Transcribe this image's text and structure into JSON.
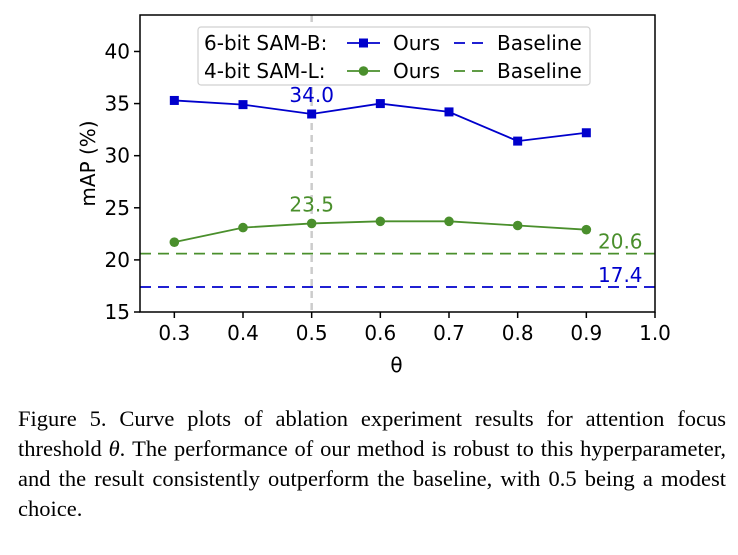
{
  "colors": {
    "blue": "#0000cc",
    "green": "#4a8f2c",
    "guide": "#cccccc",
    "axis": "#000000"
  },
  "chart_data": {
    "type": "line",
    "xlabel": "θ",
    "ylabel": "mAP (%)",
    "xlim": [
      0.25,
      1.0
    ],
    "ylim": [
      15,
      43.5
    ],
    "x_ticks": [
      "0.3",
      "0.4",
      "0.5",
      "0.6",
      "0.7",
      "0.8",
      "0.9",
      "1.0"
    ],
    "x_tick_values": [
      0.3,
      0.4,
      0.5,
      0.6,
      0.7,
      0.8,
      0.9,
      1.0
    ],
    "y_ticks": [
      "15",
      "20",
      "25",
      "30",
      "35",
      "40"
    ],
    "y_tick_values": [
      15,
      20,
      25,
      30,
      35,
      40
    ],
    "grid": false,
    "legend_placement": "top-center",
    "x": [
      0.3,
      0.4,
      0.5,
      0.6,
      0.7,
      0.8,
      0.9
    ],
    "series": [
      {
        "key": "sam_b_ours",
        "group": "6-bit SAM-B:",
        "name": "Ours",
        "color": "#0000cc",
        "style": "solid",
        "marker": "square",
        "values": [
          35.3,
          34.9,
          34.0,
          35.0,
          34.2,
          31.4,
          32.2
        ]
      },
      {
        "key": "sam_b_baseline",
        "group": "6-bit SAM-B:",
        "name": "Baseline",
        "color": "#0000cc",
        "style": "dashed",
        "constant": 17.4
      },
      {
        "key": "sam_l_ours",
        "group": "4-bit SAM-L:",
        "name": "Ours",
        "color": "#4a8f2c",
        "style": "solid",
        "marker": "circle",
        "values": [
          21.7,
          23.1,
          23.5,
          23.7,
          23.7,
          23.3,
          22.9
        ]
      },
      {
        "key": "sam_l_baseline",
        "group": "4-bit SAM-L:",
        "name": "Baseline",
        "color": "#4a8f2c",
        "style": "dashed",
        "constant": 20.6
      }
    ],
    "annotations": [
      {
        "text": "34.0",
        "x": 0.5,
        "y": 34.0,
        "color": "#0000cc"
      },
      {
        "text": "23.5",
        "x": 0.5,
        "y": 23.5,
        "color": "#4a8f2c"
      },
      {
        "text": "20.6",
        "x": 0.9,
        "y": 20.6,
        "color": "#4a8f2c"
      },
      {
        "text": "17.4",
        "x": 0.9,
        "y": 17.4,
        "color": "#0000cc"
      }
    ],
    "vertical_marker_x": 0.5
  },
  "caption": {
    "text_1": "Figure 5. Curve plots of ablation experiment results for attention focus threshold ",
    "symbol": "θ",
    "text_2": ". The performance of our method is robust to this hyperparameter, and the result consistently outperform the baseline, with 0.5 being a modest choice."
  }
}
